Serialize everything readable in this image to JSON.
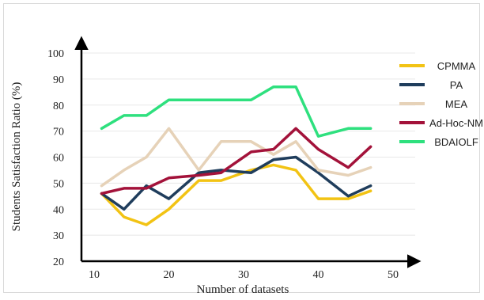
{
  "chart_data": {
    "type": "line",
    "xlabel": "Number of datasets",
    "ylabel": "Students Satisfaction Ratio (%)",
    "xlim": [
      10,
      50
    ],
    "ylim": [
      20,
      100
    ],
    "x_ticks": [
      "10",
      "20",
      "30",
      "40",
      "50"
    ],
    "y_ticks": [
      "20",
      "30",
      "40",
      "50",
      "60",
      "70",
      "80",
      "90",
      "100"
    ],
    "grid": "horizontal",
    "legend_position": "right",
    "x": [
      11,
      14,
      17,
      20,
      24,
      27,
      31,
      34,
      37,
      40,
      44,
      47
    ],
    "series": [
      {
        "name": "CPMMA",
        "color": "#f2c314",
        "values": [
          46,
          37,
          34,
          40,
          51,
          51,
          55,
          57,
          55,
          44,
          44,
          47
        ]
      },
      {
        "name": "PA",
        "color": "#1f3d5c",
        "values": [
          46,
          40,
          49,
          44,
          54,
          55,
          54,
          59,
          60,
          54,
          45,
          49
        ]
      },
      {
        "name": "MEA",
        "color": "#e6d2b8",
        "values": [
          49,
          55,
          60,
          71,
          55,
          66,
          66,
          61,
          66,
          55,
          53,
          56
        ]
      },
      {
        "name": "Ad-Hoc-NM",
        "color": "#a3123a",
        "values": [
          46,
          48,
          48,
          52,
          53,
          54,
          62,
          63,
          71,
          63,
          56,
          64
        ]
      },
      {
        "name": "BDAIOLF",
        "color": "#2ee07e",
        "values": [
          71,
          76,
          76,
          82,
          82,
          82,
          82,
          87,
          87,
          68,
          71,
          71
        ]
      }
    ]
  }
}
